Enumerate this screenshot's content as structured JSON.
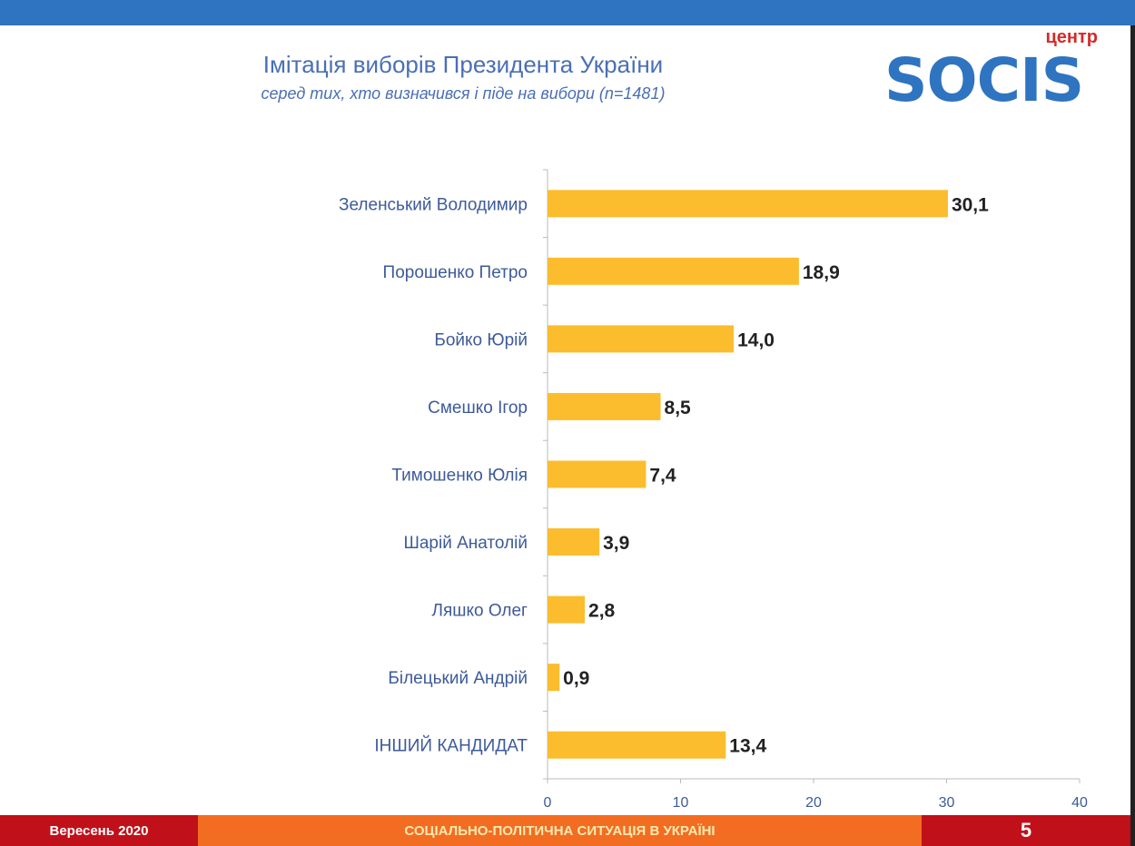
{
  "header": {
    "title": "Імітація виборів Президента України",
    "subtitle": "серед тих, хто визначився і піде на вибори (n=1481)"
  },
  "logo": {
    "small": "центр",
    "word": "SOCIS"
  },
  "footer": {
    "date": "Вересень 2020",
    "section": "СОЦІАЛЬНО-ПОЛІТИЧНА СИТУАЦІЯ В УКРАЇНІ",
    "page": "5"
  },
  "colors": {
    "bar": "#fbbd2e",
    "blue": "#2f74c0",
    "label": "#3d5a99"
  },
  "chart_data": {
    "type": "bar",
    "orientation": "horizontal",
    "categories": [
      "Зеленський Володимир",
      "Порошенко Петро",
      "Бойко Юрій",
      "Смешко Ігор",
      "Тимошенко Юлія",
      "Шарій Анатолій",
      "Ляшко Олег",
      "Білецький Андрій",
      "ІНШИЙ КАНДИДАТ"
    ],
    "values": [
      30.1,
      18.9,
      14.0,
      8.5,
      7.4,
      3.9,
      2.8,
      0.9,
      13.4
    ],
    "value_labels": [
      "30,1",
      "18,9",
      "14,0",
      "8,5",
      "7,4",
      "3,9",
      "2,8",
      "0,9",
      "13,4"
    ],
    "xlim": [
      0,
      40
    ],
    "xticks": [
      "0",
      "10",
      "20",
      "30",
      "40"
    ],
    "grid": false
  }
}
